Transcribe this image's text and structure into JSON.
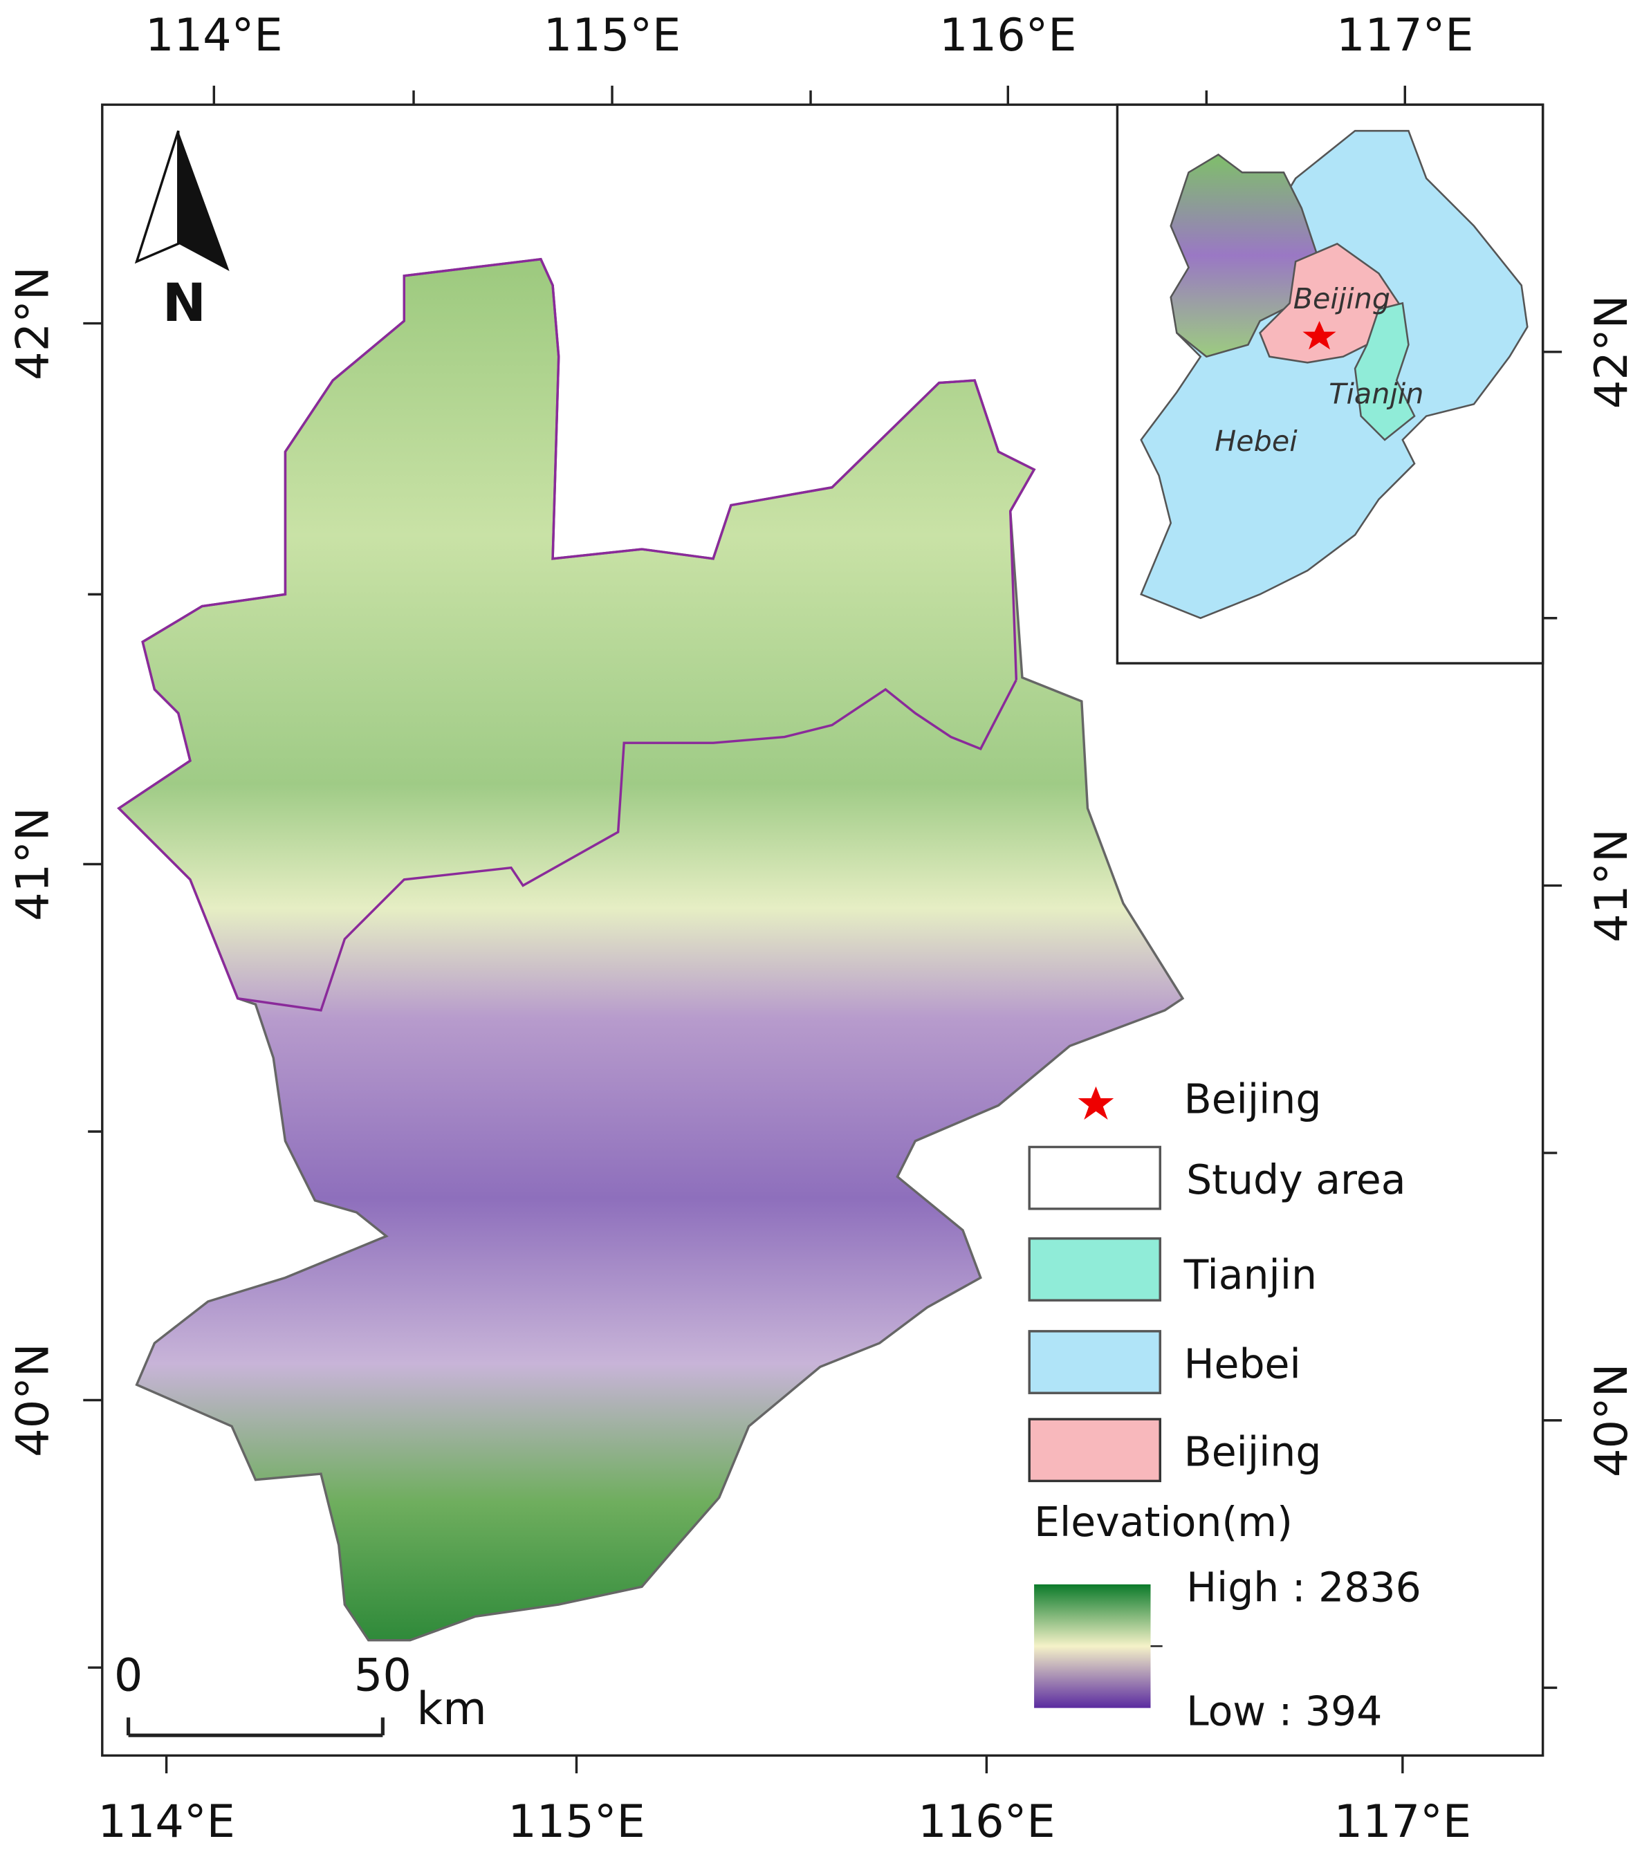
{
  "axes": {
    "top": [
      "114°E",
      "115°E",
      "116°E",
      "117°E"
    ],
    "bottom": [
      "114°E",
      "115°E",
      "116°E",
      "117°E"
    ],
    "left": [
      "42°N",
      "41°N",
      "40°N"
    ],
    "right": [
      "42°N",
      "41°N",
      "40°N"
    ]
  },
  "north": "N",
  "inset": {
    "labels": [
      "Beijing",
      "Tianjin",
      "Hebei"
    ]
  },
  "legend": {
    "items": [
      "Beijing",
      "Study area",
      "Tianjin",
      "Hebei",
      "Beijing"
    ],
    "title": "Elevation(m)",
    "high": "High : 2836",
    "low": "Low : 394"
  },
  "scale_bar": {
    "labels": [
      "0",
      "50",
      "km"
    ]
  }
}
